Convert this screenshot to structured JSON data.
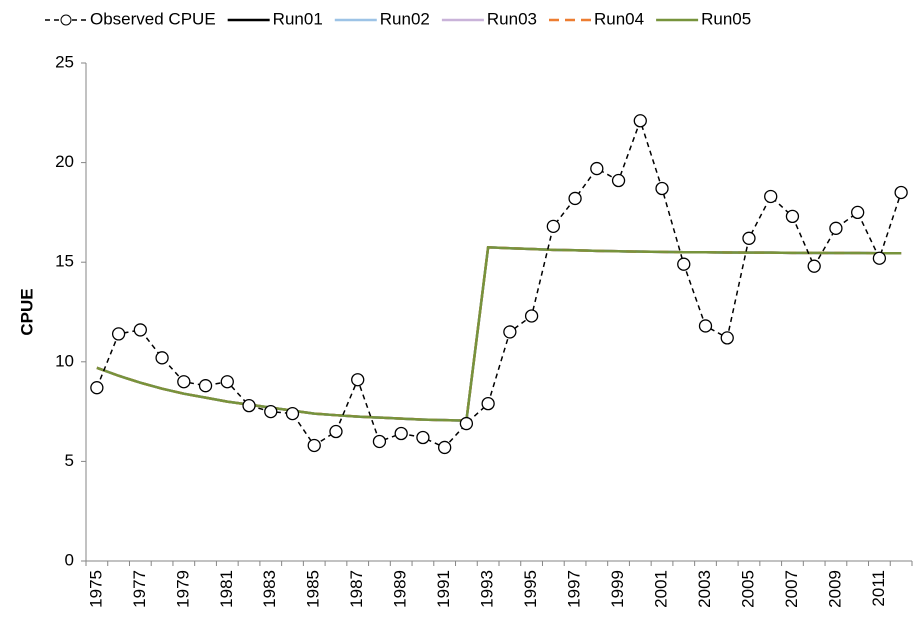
{
  "chart_data": {
    "type": "line",
    "y_label": "CPUE",
    "categories": [
      "1975",
      null,
      "1977",
      null,
      "1979",
      null,
      "1981",
      null,
      "1983",
      null,
      "1985",
      null,
      "1987",
      null,
      "1989",
      null,
      "1991",
      null,
      "1993",
      null,
      "1995",
      null,
      "1997",
      null,
      "1999",
      null,
      "2001",
      null,
      "2003",
      null,
      "2005",
      null,
      "2007",
      null,
      "2009",
      null,
      "2011",
      null
    ],
    "ylim": [
      0,
      25
    ],
    "yticks": [
      0,
      5,
      10,
      15,
      20,
      25
    ],
    "series": [
      {
        "name": "Observed CPUE",
        "color": "#000000",
        "linestyle": "dashed",
        "marker": "circle",
        "values": [
          8.7,
          11.4,
          11.6,
          10.2,
          9.0,
          8.8,
          9.0,
          7.8,
          7.5,
          7.4,
          5.8,
          6.5,
          9.1,
          6.0,
          6.4,
          6.2,
          5.7,
          6.9,
          7.9,
          11.5,
          12.3,
          16.8,
          18.2,
          19.7,
          19.1,
          22.1,
          18.7,
          14.9,
          11.8,
          11.2,
          16.2,
          18.3,
          17.3,
          14.8,
          16.7,
          17.5,
          15.2,
          18.5
        ]
      },
      {
        "name": "Run01",
        "color": "#000000",
        "linestyle": "solid",
        "values": [
          9.7,
          9.3,
          8.95,
          8.65,
          8.4,
          8.2,
          8.0,
          7.85,
          7.7,
          7.55,
          7.4,
          7.32,
          7.25,
          7.2,
          7.15,
          7.1,
          7.07,
          7.05,
          15.75,
          15.7,
          15.66,
          15.62,
          15.6,
          15.57,
          15.55,
          15.53,
          15.52,
          15.5,
          15.5,
          15.49,
          15.48,
          15.48,
          15.47,
          15.47,
          15.46,
          15.46,
          15.45,
          15.45
        ]
      },
      {
        "name": "Run02",
        "color": "#9dc3e6",
        "linestyle": "solid",
        "values": [
          9.7,
          9.3,
          8.95,
          8.65,
          8.4,
          8.2,
          8.0,
          7.85,
          7.7,
          7.55,
          7.4,
          7.32,
          7.25,
          7.2,
          7.15,
          7.1,
          7.07,
          7.05,
          15.75,
          15.7,
          15.66,
          15.62,
          15.6,
          15.57,
          15.55,
          15.53,
          15.52,
          15.5,
          15.5,
          15.49,
          15.48,
          15.48,
          15.47,
          15.47,
          15.46,
          15.46,
          15.45,
          15.45
        ]
      },
      {
        "name": "Run03",
        "color": "#c9b3d9",
        "linestyle": "solid",
        "values": [
          9.7,
          9.3,
          8.95,
          8.65,
          8.4,
          8.2,
          8.0,
          7.85,
          7.7,
          7.55,
          7.4,
          7.32,
          7.25,
          7.2,
          7.15,
          7.1,
          7.07,
          7.05,
          15.75,
          15.7,
          15.66,
          15.62,
          15.6,
          15.57,
          15.55,
          15.53,
          15.52,
          15.5,
          15.5,
          15.49,
          15.48,
          15.48,
          15.47,
          15.47,
          15.46,
          15.46,
          15.45,
          15.45
        ]
      },
      {
        "name": "Run04",
        "color": "#ed7d31",
        "linestyle": "dashed",
        "values": [
          9.7,
          9.3,
          8.95,
          8.65,
          8.4,
          8.2,
          8.0,
          7.85,
          7.7,
          7.55,
          7.4,
          7.32,
          7.25,
          7.2,
          7.15,
          7.1,
          7.07,
          7.05,
          15.75,
          15.7,
          15.66,
          15.62,
          15.6,
          15.57,
          15.55,
          15.53,
          15.52,
          15.5,
          15.5,
          15.49,
          15.48,
          15.48,
          15.47,
          15.47,
          15.46,
          15.46,
          15.45,
          15.45
        ]
      },
      {
        "name": "Run05",
        "color": "#77933c",
        "linestyle": "solid",
        "values": [
          9.7,
          9.3,
          8.95,
          8.65,
          8.4,
          8.2,
          8.0,
          7.85,
          7.7,
          7.55,
          7.4,
          7.32,
          7.25,
          7.2,
          7.15,
          7.1,
          7.07,
          7.05,
          15.75,
          15.7,
          15.66,
          15.62,
          15.6,
          15.57,
          15.55,
          15.53,
          15.52,
          15.5,
          15.5,
          15.49,
          15.48,
          15.48,
          15.47,
          15.47,
          15.46,
          15.46,
          15.45,
          15.45
        ]
      }
    ],
    "legend": "top"
  }
}
